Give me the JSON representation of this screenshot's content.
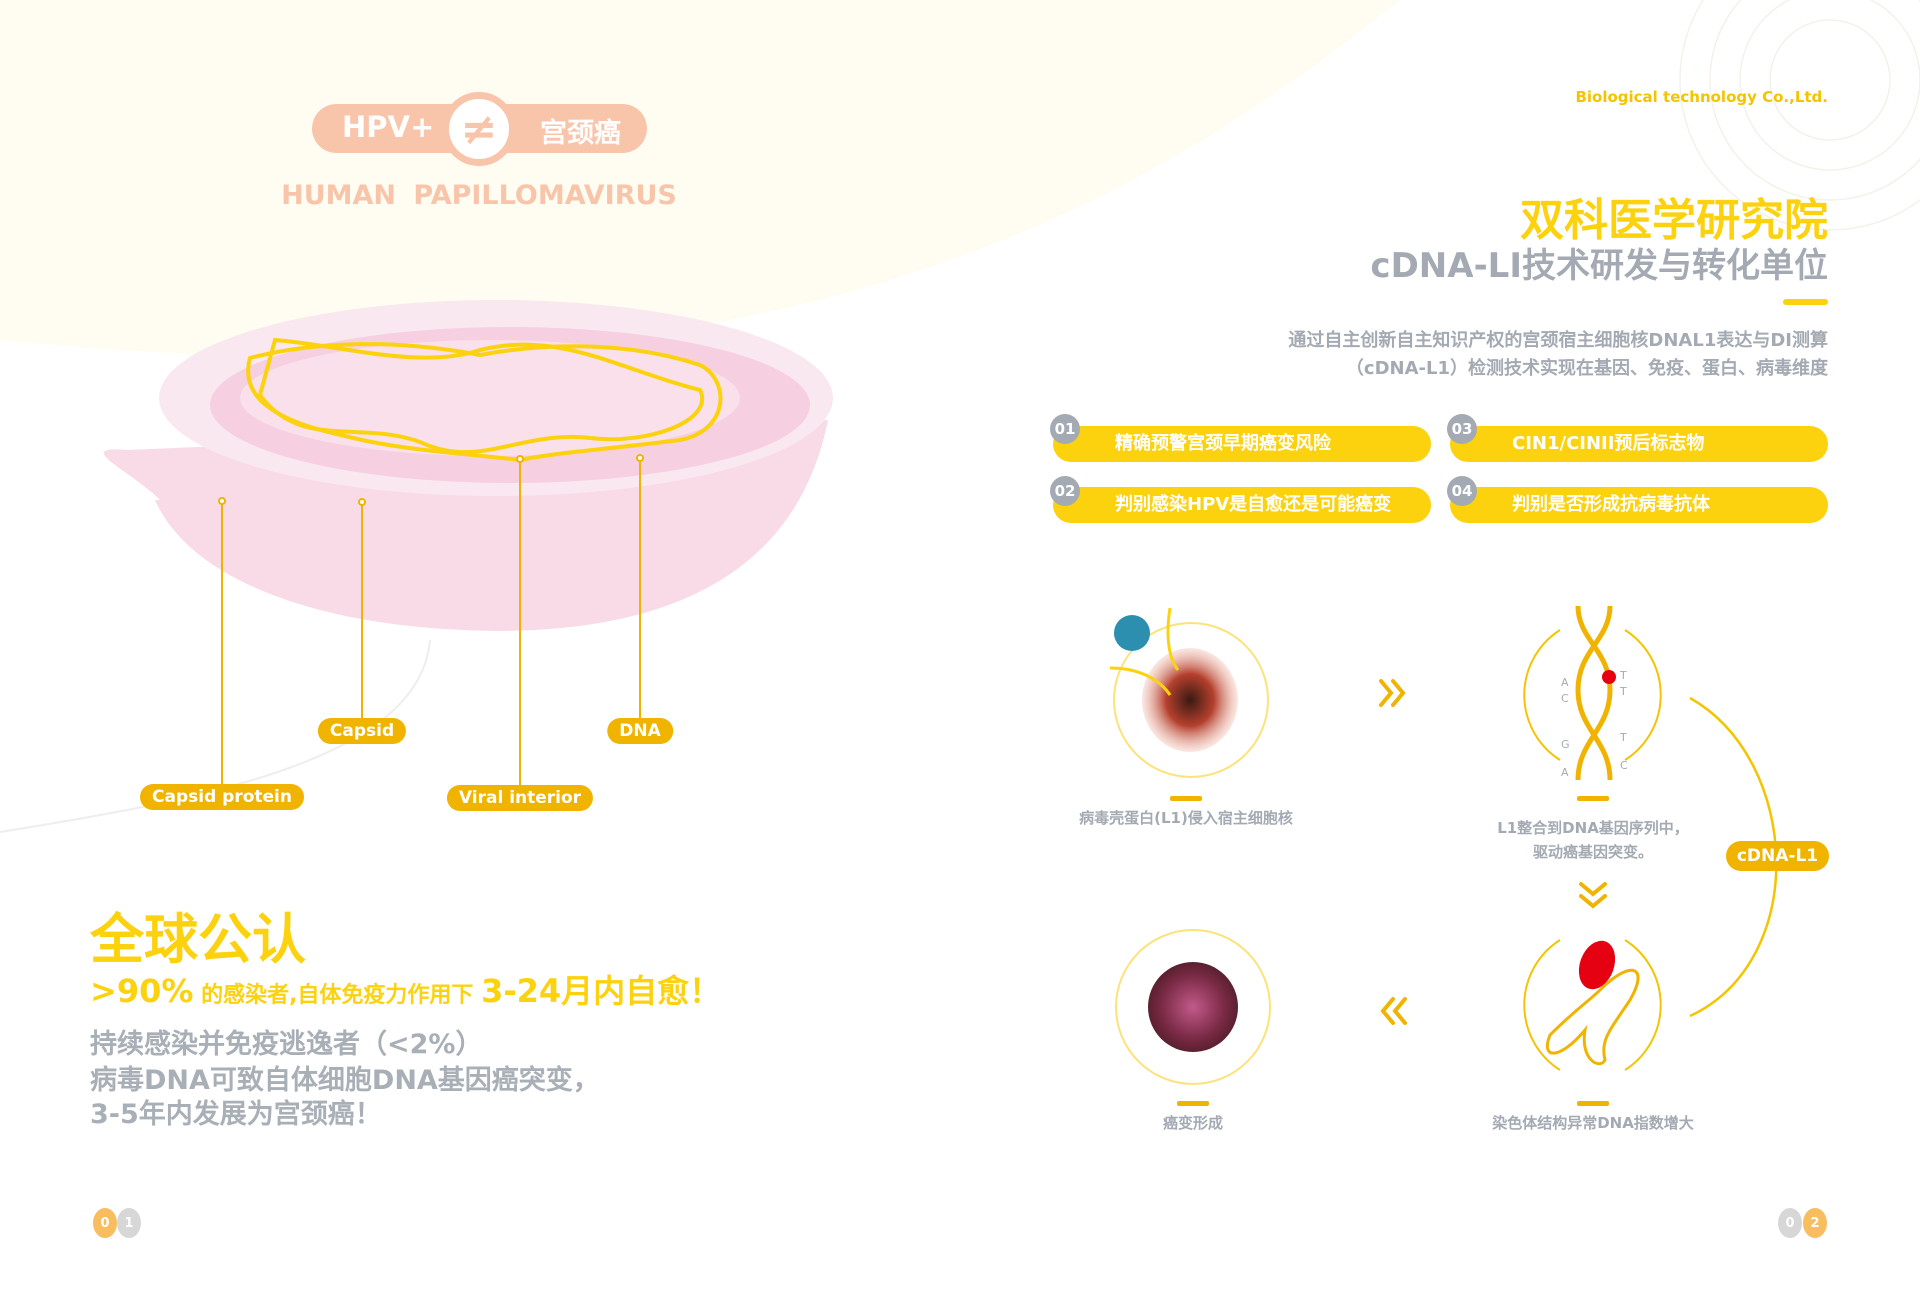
{
  "left_page": {
    "badge": {
      "left": "HPV+",
      "symbol": "≠",
      "right": "宫颈癌"
    },
    "subtitle": "HUMAN  PAPILLOMAVIRUS",
    "diagram_labels": {
      "capsid_protein": "Capsid  protein",
      "capsid": "Capsid",
      "viral_interior": "Viral  interior",
      "dna": "DNA"
    },
    "heading": "全球公认",
    "stat_line": {
      "percent": ">90%",
      "middle": " 的感染者,自体免疫力作用下 ",
      "period": "3-24月内自愈！"
    },
    "gray_lines": [
      "持续感染并免疫逃逸者（<2%）",
      "病毒DNA可致自体细胞DNA基因癌突变，",
      "3-5年内发展为宫颈癌！"
    ],
    "page_number": [
      "0",
      "1"
    ]
  },
  "right_page": {
    "company": "Biological  technology Co.,Ltd.",
    "title": "双科医学研究院",
    "subtitle": "cDNA-LI技术研发与转化单位",
    "description": [
      "通过自主创新自主知识产权的宫颈宿主细胞核DNAL1表达与DI测算",
      "（cDNA-L1）检测技术实现在基因、免疫、蛋白、病毒维度"
    ],
    "features": [
      {
        "num": "01",
        "text": "精确预警宫颈早期癌变风险"
      },
      {
        "num": "02",
        "text": "判别感染HPV是自愈还是可能癌变"
      },
      {
        "num": "03",
        "text": "CIN1/CINII预后标志物"
      },
      {
        "num": "04",
        "text": "判别是否形成抗病毒抗体"
      }
    ],
    "flow": {
      "step1": "病毒壳蛋白(L1)侵入宿主细胞核",
      "step2": [
        "L1整合到DNA基因序列中，",
        "驱动癌基因突变。"
      ],
      "step3": "染色体结构异常DNA指数增大",
      "step4": "癌变形成",
      "cycle_label": "cDNA-L1",
      "dna_bases": [
        "A",
        "C",
        "G",
        "A",
        "T",
        "T",
        "T",
        "C"
      ]
    },
    "page_number": [
      "0",
      "2"
    ]
  },
  "colors": {
    "yellow": "#fcd20f",
    "gold": "#f0b400",
    "peach": "#f8c5ab",
    "gray": "#a4aab3",
    "pink": "#f7d3e1"
  }
}
